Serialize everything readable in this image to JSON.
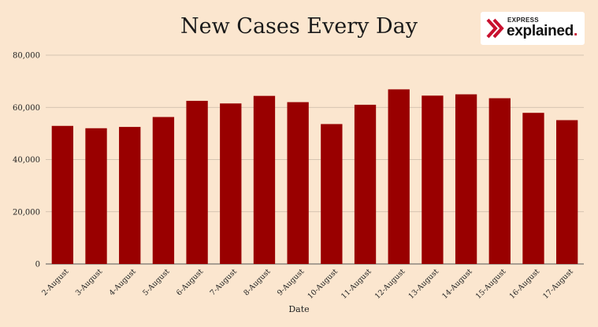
{
  "logo": {
    "top": "EXPRESS",
    "main": "explained",
    "dot": "."
  },
  "chart_data": {
    "type": "bar",
    "title": "New Cases Every Day",
    "xlabel": "Date",
    "ylabel": "",
    "ylim": [
      0,
      80000
    ],
    "yticks": [
      0,
      20000,
      40000,
      60000,
      80000
    ],
    "ytick_labels": [
      "0",
      "20,000",
      "40,000",
      "60,000",
      "80,000"
    ],
    "grid": true,
    "bar_color": "#990000",
    "categories": [
      "2-August",
      "3-August",
      "4-August",
      "5-August",
      "6-August",
      "7-August",
      "8-August",
      "9-August",
      "10-August",
      "11-August",
      "12-August",
      "13-August",
      "14-August",
      "15-August",
      "16-August",
      "17-August"
    ],
    "values": [
      52900,
      52000,
      52500,
      56300,
      62500,
      61500,
      64400,
      62000,
      53600,
      61000,
      66900,
      64500,
      65000,
      63500,
      57900,
      55100
    ]
  }
}
